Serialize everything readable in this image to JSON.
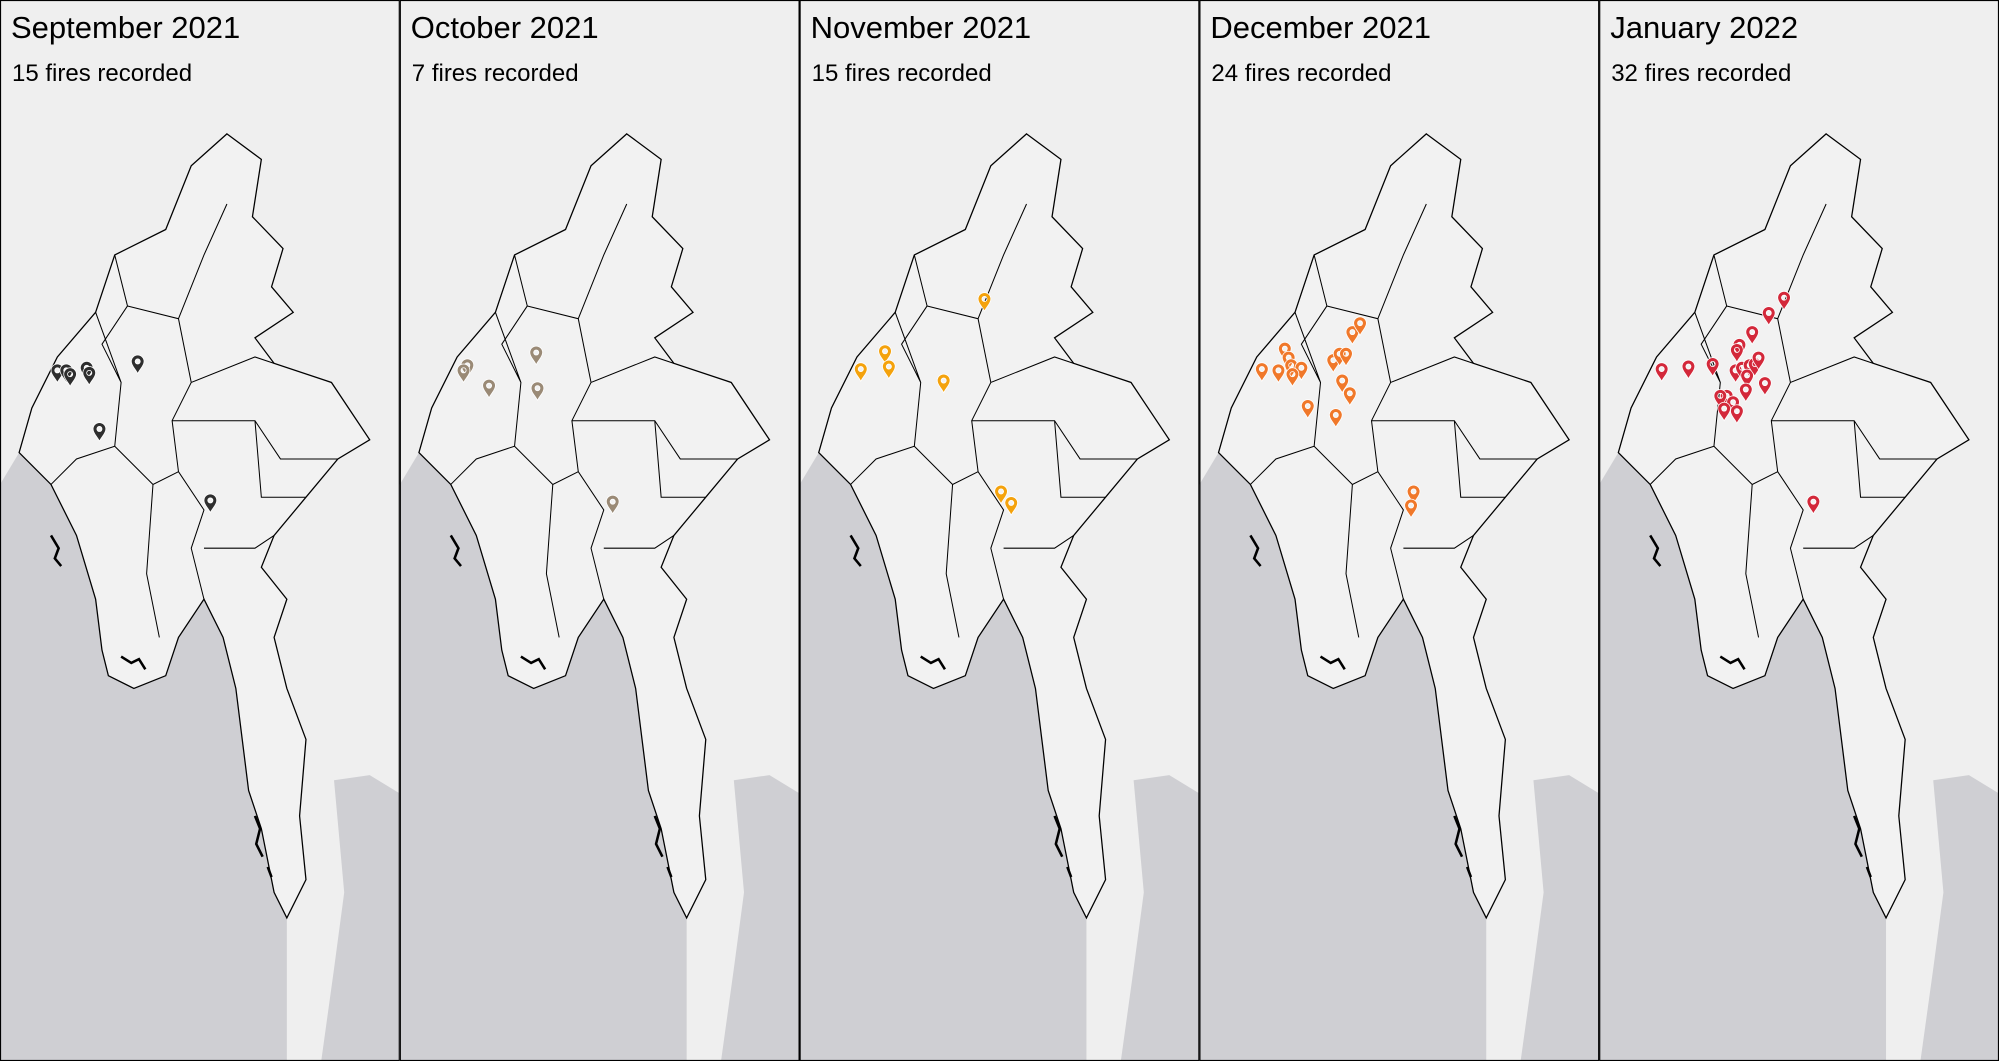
{
  "panels": [
    {
      "title": "September 2021",
      "subtitle": "15 fires recorded",
      "color": "#2e2e2e"
    },
    {
      "title": "October 2021",
      "subtitle": "7 fires recorded",
      "color": "#9a8a76"
    },
    {
      "title": "November 2021",
      "subtitle": "15 fires recorded",
      "color": "#f4a20c"
    },
    {
      "title": "December 2021",
      "subtitle": "24 fires recorded",
      "color": "#f0782a"
    },
    {
      "title": "January 2022",
      "subtitle": "32 fires recorded",
      "color": "#d3283a"
    }
  ]
}
